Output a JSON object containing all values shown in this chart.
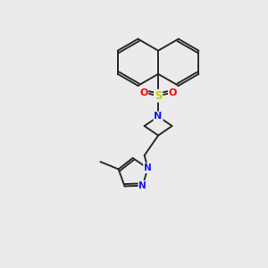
{
  "bg_color": "#ebebeb",
  "bond_color": "#2a2a2a",
  "bond_width": 1.4,
  "atom_colors": {
    "N": "#1414ff",
    "O": "#ff0000",
    "S": "#cccc00",
    "C": "#2a2a2a"
  },
  "figsize": [
    3.0,
    3.0
  ],
  "dpi": 100,
  "xlim": [
    0,
    10
  ],
  "ylim": [
    0,
    10
  ]
}
